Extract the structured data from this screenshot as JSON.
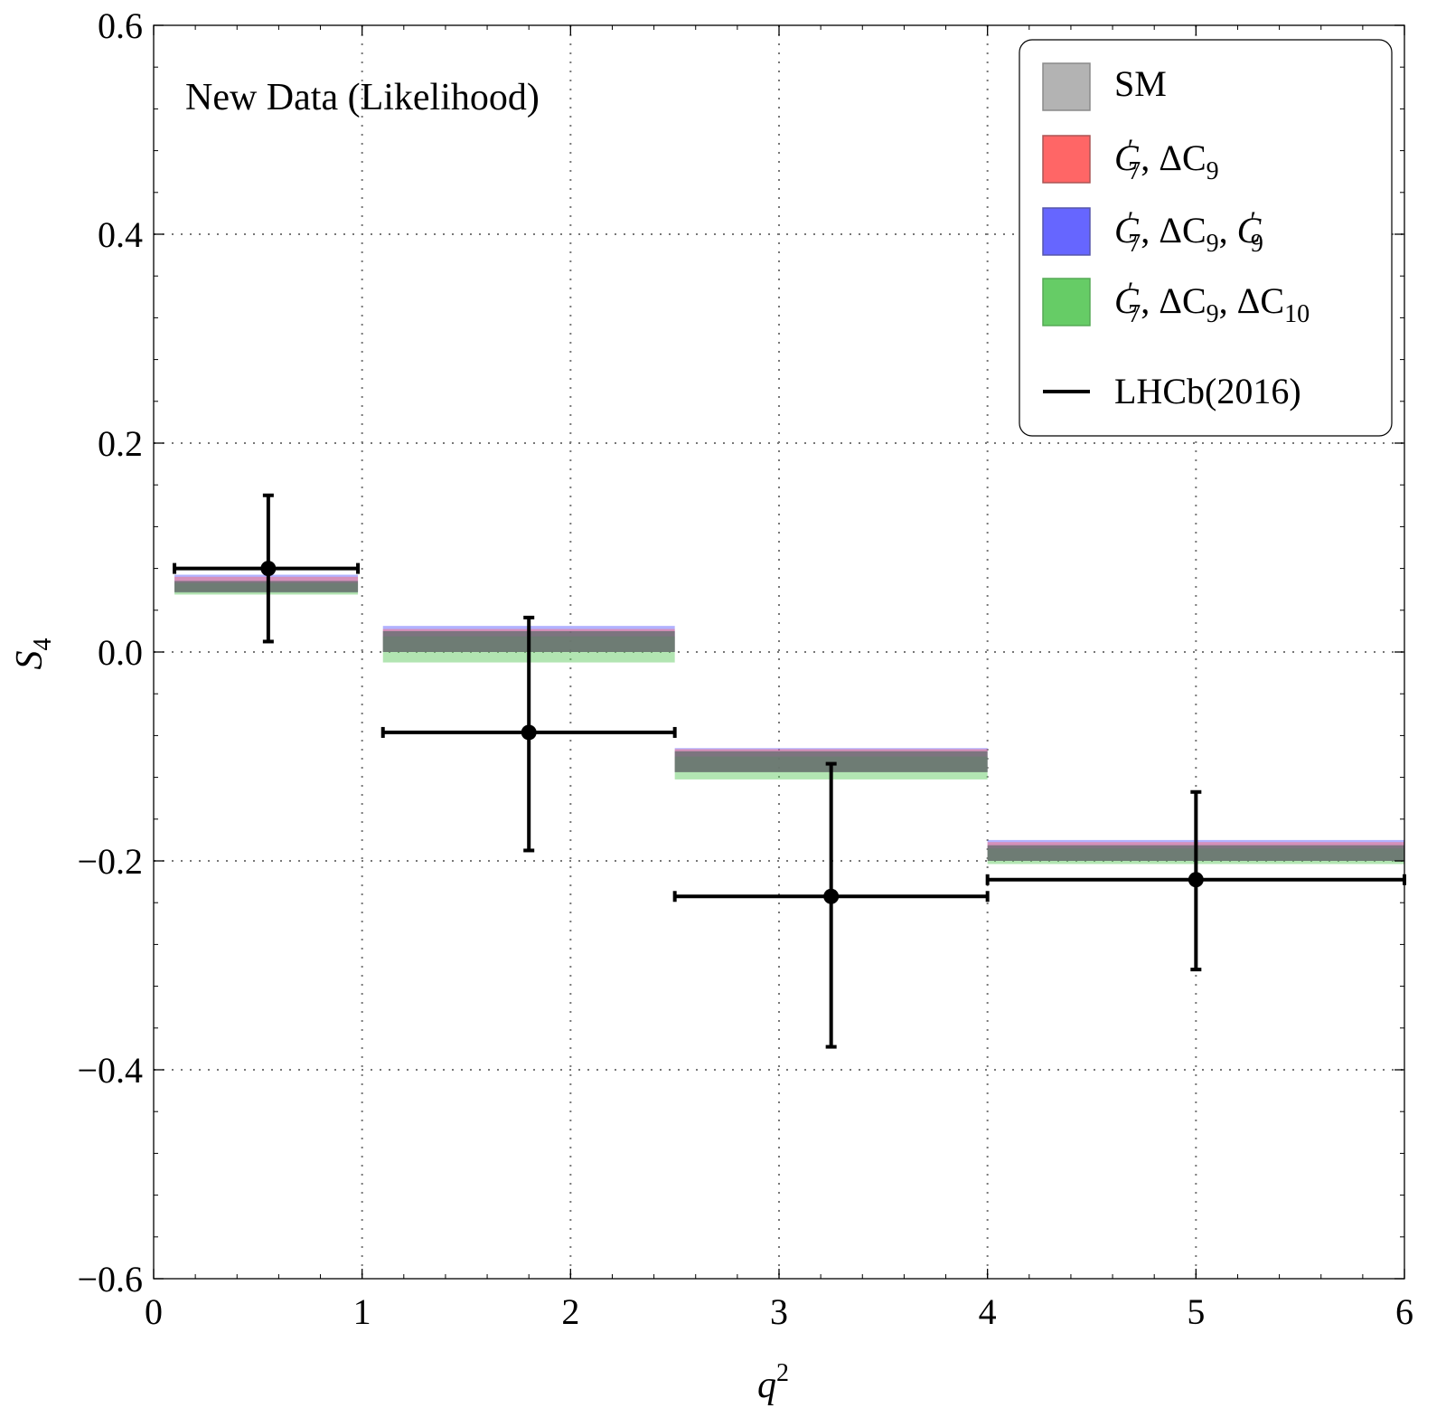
{
  "chart_data": {
    "type": "bar",
    "annotation": "New Data (Likelihood)",
    "xlabel": "q",
    "xlabel_sup": "2",
    "ylabel": "S",
    "ylabel_sub": "4",
    "xlim": [
      0,
      6
    ],
    "ylim": [
      -0.6,
      0.6
    ],
    "x_ticks": [
      0,
      1,
      2,
      3,
      4,
      5,
      6
    ],
    "x_tick_labels": [
      "0",
      "1",
      "2",
      "3",
      "4",
      "5",
      "6"
    ],
    "y_ticks": [
      -0.6,
      -0.4,
      -0.2,
      0.0,
      0.2,
      0.4,
      0.6
    ],
    "y_tick_labels": [
      "−0.6",
      "−0.4",
      "−0.2",
      "0.0",
      "0.2",
      "0.4",
      "0.6"
    ],
    "grid": "dotted",
    "legend_position": "top-right",
    "bins": [
      {
        "lo": 0.1,
        "hi": 0.98
      },
      {
        "lo": 1.1,
        "hi": 2.5
      },
      {
        "lo": 2.5,
        "hi": 4.0
      },
      {
        "lo": 4.0,
        "hi": 6.0
      }
    ],
    "series": [
      {
        "name": "SM",
        "key": "sm",
        "color": "#999999",
        "bands": [
          [
            0.057,
            0.068
          ],
          [
            0.0,
            0.02
          ],
          [
            -0.115,
            -0.095
          ],
          [
            -0.2,
            -0.185
          ]
        ]
      },
      {
        "name": "C7', ΔC9",
        "key": "c7dc9",
        "color": "#ff6666",
        "bands": [
          [
            0.058,
            0.072
          ],
          [
            0.0,
            0.022
          ],
          [
            -0.115,
            -0.093
          ],
          [
            -0.2,
            -0.182
          ]
        ]
      },
      {
        "name": "C7', ΔC9, C9'",
        "key": "c7dc9c9p",
        "color": "#6666ff",
        "bands": [
          [
            0.058,
            0.074
          ],
          [
            0.0,
            0.025
          ],
          [
            -0.115,
            -0.092
          ],
          [
            -0.2,
            -0.18
          ]
        ]
      },
      {
        "name": "C7', ΔC9, ΔC10",
        "key": "c7dc9dc10",
        "color": "#66cc66",
        "bands": [
          [
            0.055,
            0.066
          ],
          [
            -0.01,
            0.015
          ],
          [
            -0.122,
            -0.1
          ],
          [
            -0.203,
            -0.188
          ]
        ]
      }
    ],
    "data": {
      "name": "LHCb(2016)",
      "points": [
        {
          "x": 0.55,
          "y": 0.08,
          "xlo": 0.1,
          "xhi": 0.98,
          "ylo": 0.01,
          "yhi": 0.15
        },
        {
          "x": 1.8,
          "y": -0.077,
          "xlo": 1.1,
          "xhi": 2.5,
          "ylo": -0.19,
          "yhi": 0.033
        },
        {
          "x": 3.25,
          "y": -0.234,
          "xlo": 2.5,
          "xhi": 4.0,
          "ylo": -0.378,
          "yhi": -0.107
        },
        {
          "x": 5.0,
          "y": -0.218,
          "xlo": 4.0,
          "xhi": 6.0,
          "ylo": -0.304,
          "yhi": -0.134
        }
      ]
    }
  },
  "legend": {
    "sm": {
      "label": "SM"
    },
    "c7dc9": {
      "c7": "C",
      "c7_sup": "′",
      "c7_sub": "7",
      "delta_c9": "ΔC",
      "c9_sub": "9"
    },
    "c7dc9c9p": {
      "c7": "C",
      "c7_sup": "′",
      "c7_sub": "7",
      "delta_c9": "ΔC",
      "c9_sub": "9",
      "c9p": "C",
      "c9p_sup": "′",
      "c9p_sub": "9"
    },
    "c7dc9dc10": {
      "c7": "C",
      "c7_sup": "′",
      "c7_sub": "7",
      "delta_c9": "ΔC",
      "c9_sub": "9",
      "delta_c10": "ΔC",
      "c10_sub": "10"
    },
    "lhcb": {
      "label": "LHCb(2016)"
    },
    "sep": ", "
  },
  "colors": {
    "sm": "#999999",
    "red": "#ff6666",
    "blue": "#6666ff",
    "green": "#66cc66",
    "data": "#000000"
  }
}
